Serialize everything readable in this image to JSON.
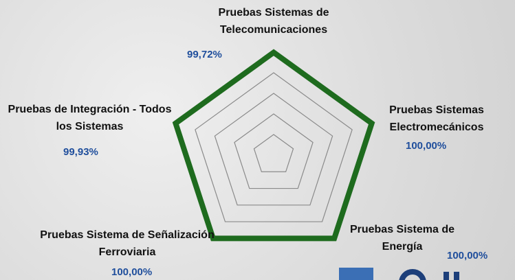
{
  "chart_data": {
    "type": "radar",
    "categories": [
      "Pruebas Sistemas de Telecomunicaciones",
      "Pruebas Sistemas Electromecánicos",
      "Pruebas Sistema de Energía",
      "Pruebas Sistema de Señalización Ferroviaria",
      "Pruebas de Integración - Todos los Sistemas"
    ],
    "series": [
      {
        "color": "#1e6b1e",
        "values": [
          99.72,
          100,
          100,
          100,
          99.93
        ],
        "value_labels": [
          "99,72%",
          "100,00%",
          "100,00%",
          "100,00%",
          "99,93%"
        ]
      }
    ],
    "rlim": [
      0,
      100
    ],
    "rticks": [
      20,
      40,
      60,
      80,
      100
    ],
    "grid": true
  }
}
